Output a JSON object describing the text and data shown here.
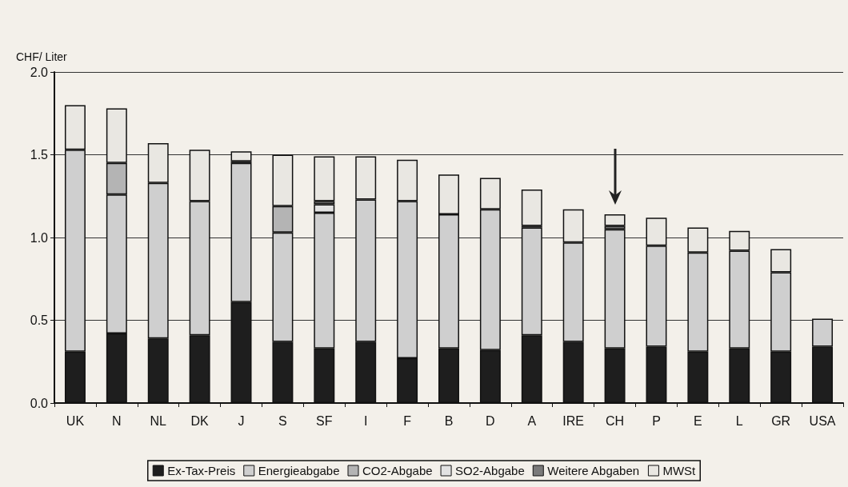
{
  "chart_data": {
    "type": "bar",
    "stacked": true,
    "ylabel": "CHF/ Liter",
    "categories": [
      "UK",
      "N",
      "NL",
      "DK",
      "J",
      "S",
      "SF",
      "I",
      "F",
      "B",
      "D",
      "A",
      "IRE",
      "CH",
      "P",
      "E",
      "L",
      "GR",
      "USA"
    ],
    "series": [
      {
        "name": "Ex-Tax-Preis",
        "color": "#1e1e1e",
        "values": [
          0.31,
          0.42,
          0.39,
          0.41,
          0.61,
          0.37,
          0.33,
          0.37,
          0.27,
          0.33,
          0.32,
          0.41,
          0.37,
          0.33,
          0.34,
          0.31,
          0.33,
          0.31,
          0.34
        ]
      },
      {
        "name": "Energieabgabe",
        "color": "#cfcfcf",
        "values": [
          1.22,
          0.84,
          0.94,
          0.81,
          0.84,
          0.66,
          0.82,
          0.86,
          0.95,
          0.81,
          0.85,
          0.65,
          0.6,
          0.72,
          0.61,
          0.6,
          0.59,
          0.48,
          0.17
        ]
      },
      {
        "name": "CO2-Abgabe",
        "color": "#b4b4b4",
        "values": [
          null,
          0.19,
          null,
          null,
          null,
          0.16,
          null,
          null,
          null,
          null,
          null,
          null,
          null,
          null,
          null,
          null,
          null,
          null,
          null
        ]
      },
      {
        "name": "SO2-Abgabe",
        "color": "#e2e2e2",
        "values": [
          null,
          null,
          null,
          null,
          null,
          null,
          0.05,
          null,
          null,
          null,
          null,
          null,
          null,
          null,
          null,
          null,
          null,
          null,
          null
        ]
      },
      {
        "name": "Weitere Abgaben",
        "color": "#7a7a7a",
        "values": [
          null,
          null,
          null,
          null,
          0.01,
          null,
          0.02,
          null,
          null,
          null,
          null,
          0.01,
          null,
          0.02,
          null,
          null,
          null,
          null,
          null
        ]
      },
      {
        "name": "MWSt",
        "color": "#e9e7e2",
        "values": [
          0.27,
          0.33,
          0.24,
          0.31,
          0.06,
          0.31,
          0.27,
          0.26,
          0.25,
          0.24,
          0.19,
          0.22,
          0.2,
          0.07,
          0.17,
          0.15,
          0.12,
          0.14,
          null
        ]
      }
    ],
    "ylim": [
      0,
      2
    ],
    "yticks": [
      {
        "value": 0,
        "label": "0.0"
      },
      {
        "value": 0.5,
        "label": "0.5"
      },
      {
        "value": 1,
        "label": "1.0"
      },
      {
        "value": 1.5,
        "label": "1.5"
      },
      {
        "value": 2,
        "label": "2.0"
      }
    ],
    "grid": "y",
    "legend": "bottom"
  }
}
